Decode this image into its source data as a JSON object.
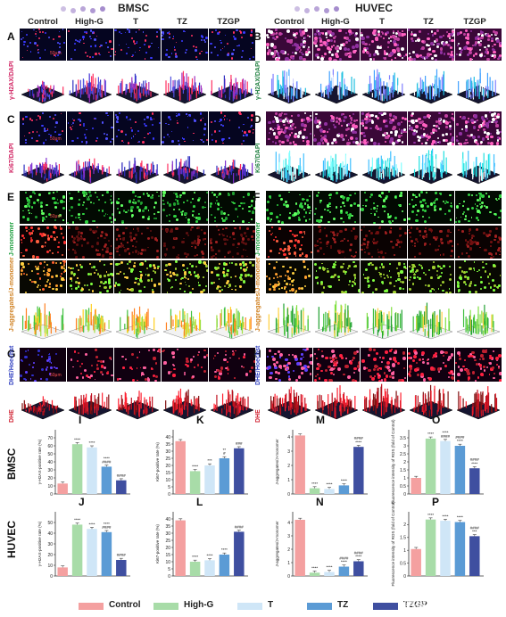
{
  "figure": {
    "group_left": "BMSC",
    "group_right": "HUVEC",
    "columns": [
      "Control",
      "High-G",
      "T",
      "TZ",
      "TZGP"
    ],
    "panels": {
      "A": {
        "letter": "A",
        "label": "γ-H2AX/DAPI"
      },
      "B": {
        "letter": "B",
        "label": "γ-H2AX/DAPI"
      },
      "C": {
        "letter": "C",
        "label": "Ki67/DAPI"
      },
      "D": {
        "letter": "D",
        "label": "Ki67/DAPI"
      },
      "E": {
        "letter": "E",
        "label_top": "J-monomer",
        "label_bottom": "J-aggregates/J-monomer"
      },
      "F": {
        "letter": "F",
        "label_top": "J-monomer",
        "label_bottom": "J-aggregates/J-monomer"
      },
      "G": {
        "letter": "G",
        "label_top": "DHE/Hoechst",
        "label_bottom": "DHE"
      },
      "H": {
        "letter": "H",
        "label_top": "DHE/Hoechst",
        "label_bottom": "DHE"
      }
    },
    "scale_bar": "50μm",
    "row_titles": [
      "BMSC",
      "HUVEC"
    ],
    "legend": [
      {
        "name": "Control",
        "color": "#f4a0a0"
      },
      {
        "name": "High-G",
        "color": "#a8dca8"
      },
      {
        "name": "T",
        "color": "#cfe6f7"
      },
      {
        "name": "TZ",
        "color": "#5b9bd5"
      },
      {
        "name": "TZGP",
        "color": "#3f4fa0"
      }
    ],
    "watermark": "南极熊3D打印"
  },
  "chart_data": [
    {
      "id": "I",
      "type": "bar",
      "categories": [
        "Control",
        "High-G",
        "T",
        "TZ",
        "TZGP"
      ],
      "values": [
        13,
        62,
        58,
        34,
        17
      ],
      "ylabel": "γ-H2AX-positive rate (%)",
      "ylim": [
        0,
        80
      ],
      "yticks": [
        0,
        10,
        20,
        30,
        40,
        50,
        60,
        70
      ],
      "annotations": [
        "",
        "****",
        "****",
        "****\n####",
        "####"
      ]
    },
    {
      "id": "K",
      "type": "bar",
      "categories": [
        "Control",
        "High-G",
        "T",
        "TZ",
        "TZGP"
      ],
      "values": [
        37,
        16,
        20,
        25,
        32
      ],
      "ylabel": "Ki67-positive rate (%)",
      "ylim": [
        0,
        45
      ],
      "yticks": [
        0,
        5,
        10,
        15,
        20,
        25,
        30,
        35,
        40
      ],
      "annotations": [
        "",
        "****",
        "***",
        "**\n#",
        "###"
      ]
    },
    {
      "id": "M",
      "type": "bar",
      "categories": [
        "Control",
        "High-G",
        "T",
        "TZ",
        "TZGP"
      ],
      "values": [
        4.1,
        0.4,
        0.35,
        0.6,
        3.3
      ],
      "ylabel": "J-aggregates/J-monomer",
      "ylim": [
        0,
        4.5
      ],
      "yticks": [
        0,
        1,
        2,
        3,
        4
      ],
      "annotations": [
        "",
        "****",
        "****",
        "****",
        "####\n****"
      ]
    },
    {
      "id": "O",
      "type": "bar",
      "categories": [
        "Control",
        "High-G",
        "T",
        "TZ",
        "TZGP"
      ],
      "values": [
        1.0,
        3.45,
        3.3,
        3.0,
        1.6
      ],
      "ylabel": "Fluorescence intensity of ROS (fold of Control)",
      "ylim": [
        0,
        4.0
      ],
      "yticks": [
        0,
        0.5,
        1.0,
        1.5,
        2.0,
        2.5,
        3.0,
        3.5
      ],
      "annotations": [
        "",
        "****",
        "****\n####",
        "####\n****",
        "####\n****"
      ]
    },
    {
      "id": "J",
      "type": "bar",
      "categories": [
        "Control",
        "High-G",
        "T",
        "TZ",
        "TZGP"
      ],
      "values": [
        8,
        48,
        44,
        41,
        15
      ],
      "ylabel": "γ-H2AX-positive rate (%)",
      "ylim": [
        0,
        60
      ],
      "yticks": [
        0,
        10,
        20,
        30,
        40,
        50
      ],
      "annotations": [
        "",
        "****",
        "****",
        "****\n####",
        "####"
      ]
    },
    {
      "id": "L",
      "type": "bar",
      "categories": [
        "Control",
        "High-G",
        "T",
        "TZ",
        "TZGP"
      ],
      "values": [
        39,
        10,
        11,
        15,
        31
      ],
      "ylabel": "Ki67-positive rate (%)",
      "ylim": [
        0,
        45
      ],
      "yticks": [
        0,
        5,
        10,
        15,
        20,
        25,
        30,
        35,
        40
      ],
      "annotations": [
        "",
        "****",
        "****",
        "****",
        "####"
      ]
    },
    {
      "id": "N",
      "type": "bar",
      "categories": [
        "Control",
        "High-G",
        "T",
        "TZ",
        "TZGP"
      ],
      "values": [
        4.2,
        0.25,
        0.3,
        0.7,
        1.1
      ],
      "ylabel": "J-aggregates/J-monomer",
      "ylim": [
        0,
        4.8
      ],
      "yticks": [
        0,
        1,
        2,
        3,
        4
      ],
      "annotations": [
        "",
        "****",
        "****",
        "####\n****",
        "####\n****"
      ]
    },
    {
      "id": "P",
      "type": "bar",
      "categories": [
        "Control",
        "High-G",
        "T",
        "TZ",
        "TZGP"
      ],
      "values": [
        1.05,
        2.2,
        2.15,
        2.1,
        1.55
      ],
      "ylabel": "Fluorescence intensity of ROS (fold of Control)",
      "ylim": [
        0,
        2.5
      ],
      "yticks": [
        0,
        0.5,
        1.0,
        1.5,
        2.0
      ],
      "annotations": [
        "",
        "****",
        "****",
        "****",
        "####\n***"
      ]
    }
  ]
}
